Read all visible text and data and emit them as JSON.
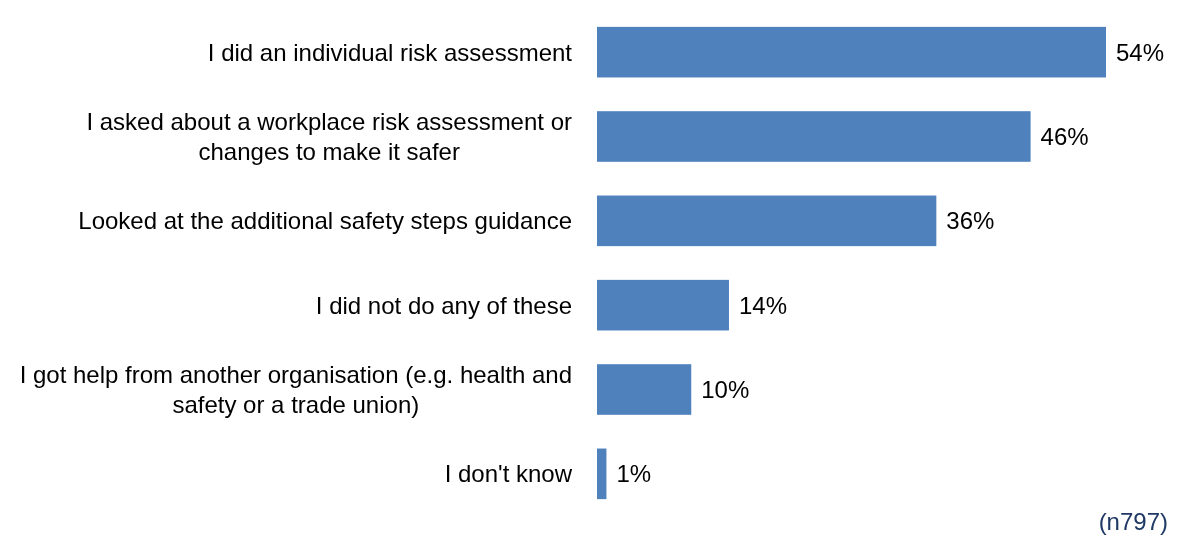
{
  "chart_data": {
    "type": "bar",
    "orientation": "horizontal",
    "categories": [
      "I did an individual risk assessment",
      "I asked about a workplace risk assessment or changes to make it safer",
      "Looked at the additional safety steps guidance",
      "I did not do any of these",
      "I got help from another organisation (e.g. health and safety or a trade union)",
      "I don't know"
    ],
    "values": [
      54,
      46,
      36,
      14,
      10,
      1
    ],
    "value_labels": [
      "54%",
      "46%",
      "36%",
      "14%",
      "10%",
      "1%"
    ],
    "color": "#4f81bd",
    "annotations": [
      "(n797)"
    ]
  }
}
